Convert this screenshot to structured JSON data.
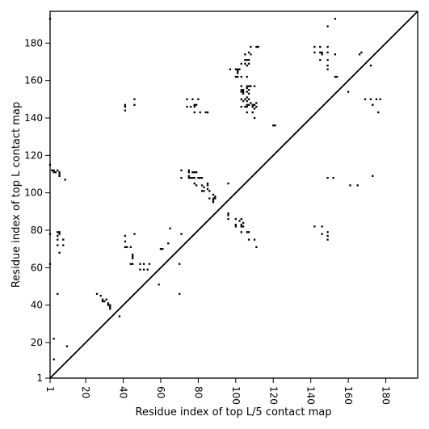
{
  "chart_data": {
    "type": "scatter",
    "title": "",
    "xlabel": "Residue index of top L/5 contact map",
    "ylabel": "Residue index of top L contact map",
    "xlim": [
      1,
      197
    ],
    "ylim": [
      1,
      197
    ],
    "xticks": [
      1,
      20,
      40,
      60,
      80,
      100,
      120,
      140,
      160,
      180
    ],
    "yticks": [
      1,
      20,
      40,
      60,
      80,
      100,
      120,
      140,
      160,
      180
    ],
    "x_tick_rotation": -90,
    "grid": false,
    "legend": "none",
    "diagonal_line": true,
    "marker": "square",
    "colors": {
      "marker": "#000000",
      "line": "#000000",
      "background": "#ffffff"
    },
    "lower_triangle_points": [
      [
        1,
        193
      ],
      [
        1,
        115
      ],
      [
        1,
        78
      ],
      [
        1,
        62
      ],
      [
        2,
        112
      ],
      [
        3,
        112
      ],
      [
        3,
        111
      ],
      [
        3,
        22
      ],
      [
        3,
        11
      ],
      [
        4,
        111
      ],
      [
        5,
        112
      ],
      [
        5,
        79
      ],
      [
        5,
        77
      ],
      [
        5,
        75
      ],
      [
        5,
        72
      ],
      [
        5,
        46
      ],
      [
        6,
        111
      ],
      [
        6,
        110
      ],
      [
        6,
        109
      ],
      [
        6,
        79
      ],
      [
        6,
        78
      ],
      [
        6,
        68
      ],
      [
        8,
        75
      ],
      [
        8,
        72
      ],
      [
        9,
        107
      ],
      [
        10,
        18
      ],
      [
        26,
        46
      ],
      [
        28,
        45
      ],
      [
        29,
        43
      ],
      [
        29,
        42
      ],
      [
        30,
        42
      ],
      [
        31,
        43
      ],
      [
        32,
        41
      ],
      [
        32,
        40
      ],
      [
        33,
        40
      ],
      [
        33,
        39
      ],
      [
        33,
        38
      ],
      [
        38,
        34
      ],
      [
        41,
        147
      ],
      [
        41,
        146
      ],
      [
        41,
        144
      ],
      [
        41,
        77
      ],
      [
        41,
        74
      ],
      [
        41,
        71
      ],
      [
        42,
        71
      ],
      [
        44,
        71
      ],
      [
        44,
        62
      ],
      [
        45,
        62
      ],
      [
        45,
        67
      ],
      [
        45,
        66
      ],
      [
        45,
        65
      ],
      [
        46,
        150
      ],
      [
        46,
        147
      ],
      [
        46,
        78
      ],
      [
        49,
        62
      ],
      [
        49,
        59
      ],
      [
        51,
        59
      ],
      [
        51,
        62
      ],
      [
        53,
        59
      ],
      [
        54,
        62
      ],
      [
        59,
        51
      ],
      [
        60,
        70
      ],
      [
        61,
        70
      ],
      [
        64,
        73
      ],
      [
        65,
        81
      ],
      [
        70,
        62
      ],
      [
        70,
        46
      ],
      [
        71,
        112
      ],
      [
        71,
        108
      ],
      [
        71,
        78
      ],
      [
        74,
        150
      ],
      [
        74,
        146
      ],
      [
        75,
        112
      ],
      [
        75,
        111
      ],
      [
        75,
        109
      ],
      [
        75,
        108
      ],
      [
        76,
        108
      ],
      [
        76,
        146
      ],
      [
        77,
        150
      ],
      [
        77,
        108
      ],
      [
        77,
        111
      ],
      [
        78,
        147
      ],
      [
        78,
        146
      ],
      [
        78,
        143
      ],
      [
        78,
        111
      ],
      [
        78,
        108
      ],
      [
        78,
        105
      ],
      [
        79,
        147
      ],
      [
        79,
        111
      ],
      [
        79,
        104
      ],
      [
        80,
        150
      ],
      [
        80,
        108
      ],
      [
        81,
        143
      ],
      [
        81,
        108
      ],
      [
        82,
        108
      ],
      [
        82,
        104
      ],
      [
        82,
        101
      ],
      [
        83,
        103
      ],
      [
        83,
        101
      ],
      [
        84,
        143
      ],
      [
        85,
        143
      ],
      [
        85,
        105
      ],
      [
        85,
        104
      ],
      [
        85,
        102
      ],
      [
        86,
        101
      ],
      [
        86,
        97
      ],
      [
        88,
        99
      ],
      [
        88,
        97
      ],
      [
        88,
        96
      ],
      [
        88,
        95
      ],
      [
        89,
        98
      ],
      [
        89,
        97
      ],
      [
        96,
        89
      ],
      [
        96,
        88
      ],
      [
        96,
        86
      ],
      [
        96,
        105
      ],
      [
        97,
        166
      ],
      [
        100,
        166
      ],
      [
        100,
        162
      ],
      [
        100,
        86
      ],
      [
        100,
        83
      ],
      [
        100,
        82
      ],
      [
        101,
        166
      ],
      [
        101,
        165
      ],
      [
        101,
        164
      ],
      [
        101,
        162
      ],
      [
        102,
        166
      ],
      [
        102,
        85
      ],
      [
        103,
        162
      ],
      [
        103,
        169
      ],
      [
        103,
        157
      ],
      [
        103,
        155
      ],
      [
        103,
        154
      ],
      [
        103,
        150
      ],
      [
        103,
        146
      ],
      [
        103,
        86
      ],
      [
        103,
        83
      ],
      [
        103,
        82
      ],
      [
        103,
        79
      ],
      [
        104,
        155
      ],
      [
        104,
        154
      ],
      [
        104,
        153
      ],
      [
        104,
        149
      ],
      [
        104,
        84
      ],
      [
        104,
        82
      ],
      [
        105,
        174
      ],
      [
        105,
        171
      ],
      [
        105,
        169
      ],
      [
        105,
        150
      ],
      [
        105,
        146
      ],
      [
        106,
        171
      ],
      [
        106,
        168
      ],
      [
        106,
        162
      ],
      [
        106,
        157
      ],
      [
        106,
        156
      ],
      [
        106,
        154
      ],
      [
        106,
        151
      ],
      [
        106,
        149
      ],
      [
        106,
        147
      ],
      [
        106,
        146
      ],
      [
        106,
        143
      ],
      [
        106,
        79
      ],
      [
        107,
        175
      ],
      [
        107,
        171
      ],
      [
        107,
        169
      ],
      [
        107,
        157
      ],
      [
        107,
        155
      ],
      [
        107,
        153
      ],
      [
        107,
        150
      ],
      [
        107,
        147
      ],
      [
        107,
        75
      ],
      [
        107,
        79
      ],
      [
        108,
        178
      ],
      [
        108,
        174
      ],
      [
        108,
        157
      ],
      [
        108,
        148
      ],
      [
        109,
        143
      ],
      [
        109,
        146
      ],
      [
        109,
        147
      ],
      [
        110,
        157
      ],
      [
        110,
        147
      ],
      [
        110,
        145
      ],
      [
        110,
        140
      ],
      [
        110,
        75
      ],
      [
        111,
        178
      ],
      [
        111,
        148
      ],
      [
        111,
        146
      ],
      [
        111,
        71
      ],
      [
        112,
        178
      ],
      [
        120,
        136
      ],
      [
        121,
        136
      ],
      [
        142,
        178
      ],
      [
        142,
        175
      ],
      [
        142,
        82
      ],
      [
        145,
        178
      ],
      [
        145,
        175
      ],
      [
        145,
        171
      ],
      [
        146,
        82
      ],
      [
        146,
        78
      ],
      [
        146,
        175
      ],
      [
        146,
        174
      ],
      [
        149,
        189
      ],
      [
        149,
        178
      ],
      [
        149,
        175
      ],
      [
        149,
        171
      ],
      [
        149,
        168
      ],
      [
        149,
        166
      ],
      [
        149,
        108
      ],
      [
        149,
        79
      ],
      [
        149,
        77
      ],
      [
        149,
        75
      ],
      [
        152,
        108
      ],
      [
        153,
        193
      ],
      [
        153,
        174
      ],
      [
        153,
        162
      ],
      [
        154,
        162
      ],
      [
        160,
        154
      ],
      [
        161,
        104
      ],
      [
        165,
        104
      ],
      [
        166,
        174
      ],
      [
        167,
        175
      ],
      [
        169,
        150
      ],
      [
        172,
        168
      ],
      [
        172,
        150
      ],
      [
        173,
        109
      ],
      [
        173,
        147
      ],
      [
        175,
        150
      ],
      [
        176,
        143
      ],
      [
        177,
        150
      ]
    ]
  }
}
